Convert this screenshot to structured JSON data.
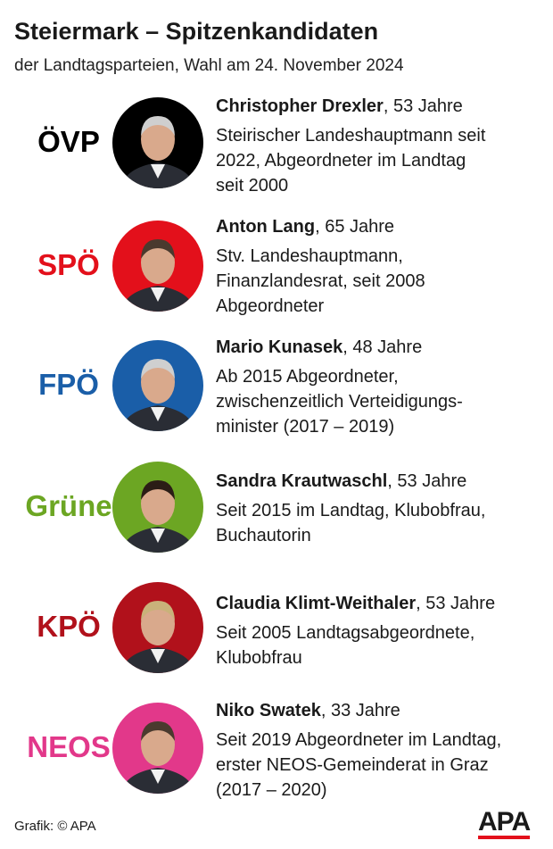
{
  "header": {
    "title": "Steiermark – Spitzenkandidaten",
    "subtitle": "der Landtagsparteien, Wahl am 24. November 2024"
  },
  "candidates": [
    {
      "party": "ÖVP",
      "color": "#000000",
      "name": "Christopher Drexler",
      "age": ", 53 Jahre",
      "description": [
        "Steirischer Landeshauptmann seit",
        "2022, Abgeordneter im Landtag",
        "seit 2000"
      ]
    },
    {
      "party": "SPÖ",
      "color": "#e3101b",
      "name": "Anton Lang",
      "age": ", 65 Jahre",
      "description": [
        "Stv. Landeshauptmann,",
        "Finanzlandesrat, seit 2008",
        "Abgeordneter"
      ]
    },
    {
      "party": "FPÖ",
      "color": "#1a5ea8",
      "name": "Mario Kunasek",
      "age": ", 48 Jahre",
      "description": [
        "Ab 2015 Abgeordneter,",
        "zwischenzeitlich Verteidigungs-",
        "minister (2017 – 2019)"
      ]
    },
    {
      "party": "Grüne",
      "color": "#6ca623",
      "name": "Sandra Krautwaschl",
      "age": ", 53 Jahre",
      "description": [
        "Seit 2015 im Landtag, Klubobfrau,",
        "Buchautorin"
      ]
    },
    {
      "party": "KPÖ",
      "color": "#b1111b",
      "name": "Claudia Klimt-Weithaler",
      "age": ", 53 Jahre",
      "description": [
        "Seit 2005 Landtagsabgeordnete,",
        "Klubobfrau"
      ]
    },
    {
      "party": "NEOS",
      "color": "#e2388a",
      "name": "Niko Swatek",
      "age": ", 33 Jahre",
      "description": [
        "Seit 2019 Abgeordneter im Landtag,",
        "erster NEOS-Gemeinderat in Graz",
        "(2017 – 2020)"
      ]
    }
  ],
  "footer": {
    "credit": "Grafik: © APA",
    "logo": "APA"
  }
}
